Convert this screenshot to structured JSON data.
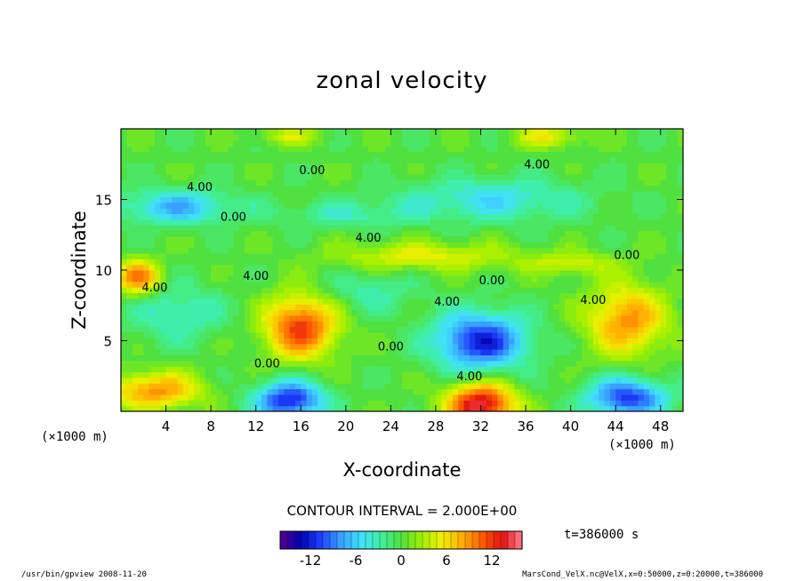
{
  "chart_data": {
    "type": "heatmap",
    "title": "zonal velocity",
    "xlabel": "X-coordinate",
    "ylabel": "Z-coordinate",
    "x_unit": "(×1000 m)",
    "y_unit": "(×1000 m)",
    "xlim": [
      0,
      50
    ],
    "ylim": [
      0,
      20
    ],
    "x_ticks": [
      4,
      8,
      12,
      16,
      20,
      24,
      28,
      32,
      36,
      40,
      44,
      48
    ],
    "y_ticks": [
      5,
      10,
      15
    ],
    "contour_interval_text": "CONTOUR INTERVAL = 2.000E+00",
    "colorbar": {
      "min": -16,
      "max": 16,
      "ticks": [
        -12,
        -6,
        0,
        6,
        12
      ],
      "colors": [
        "#5a008c",
        "#0000b0",
        "#1f40ff",
        "#3aa0ff",
        "#40e0ff",
        "#40f0a0",
        "#50e040",
        "#a0f000",
        "#f0f000",
        "#ffb000",
        "#ff6000",
        "#e01010",
        "#ff8090"
      ]
    },
    "contour_labels": [
      {
        "x": 7,
        "z": 15.6,
        "text": "4.00"
      },
      {
        "x": 10,
        "z": 13.5,
        "text": "0.00"
      },
      {
        "x": 17,
        "z": 16.8,
        "text": "0.00"
      },
      {
        "x": 37,
        "z": 17.2,
        "text": "4.00"
      },
      {
        "x": 22,
        "z": 12.0,
        "text": "4.00"
      },
      {
        "x": 45,
        "z": 10.8,
        "text": "0.00"
      },
      {
        "x": 3,
        "z": 8.5,
        "text": "4.00"
      },
      {
        "x": 12,
        "z": 9.3,
        "text": "4.00"
      },
      {
        "x": 33,
        "z": 9.0,
        "text": "0.00"
      },
      {
        "x": 29,
        "z": 7.5,
        "text": "4.00"
      },
      {
        "x": 42,
        "z": 7.6,
        "text": "4.00"
      },
      {
        "x": 24,
        "z": 4.3,
        "text": "0.00"
      },
      {
        "x": 13,
        "z": 3.1,
        "text": "0.00"
      },
      {
        "x": 31,
        "z": 2.2,
        "text": "4.00"
      }
    ],
    "features": [
      {
        "x": 16,
        "z": 6,
        "u": 12,
        "sx": 3.2,
        "sz": 2.2
      },
      {
        "x": 45,
        "z": 6.5,
        "u": 9,
        "sx": 3.5,
        "sz": 2.5
      },
      {
        "x": 1.5,
        "z": 9.5,
        "u": 10,
        "sx": 2,
        "sz": 1.2
      },
      {
        "x": 32,
        "z": 0.5,
        "u": 15,
        "sx": 3,
        "sz": 1.5
      },
      {
        "x": 3,
        "z": 1.5,
        "u": 9,
        "sx": 4,
        "sz": 1.3
      },
      {
        "x": 27,
        "z": 11,
        "u": 5,
        "sx": 8,
        "sz": 1
      },
      {
        "x": 40,
        "z": 10.5,
        "u": 4,
        "sx": 4,
        "sz": 0.8
      },
      {
        "x": 32,
        "z": 5,
        "u": -12,
        "sx": 4,
        "sz": 2
      },
      {
        "x": 15,
        "z": 0.8,
        "u": -12,
        "sx": 3,
        "sz": 1.4
      },
      {
        "x": 45,
        "z": 1,
        "u": -11,
        "sx": 3.5,
        "sz": 1.4
      },
      {
        "x": 5,
        "z": 14.5,
        "u": -7,
        "sx": 5,
        "sz": 1.2
      },
      {
        "x": 33,
        "z": 15,
        "u": -5,
        "sx": 8,
        "sz": 1.5
      },
      {
        "x": 5,
        "z": 7,
        "u": -4,
        "sx": 4,
        "sz": 2
      },
      {
        "x": 20,
        "z": 14,
        "u": -3,
        "sx": 6,
        "sz": 1
      },
      {
        "x": 38,
        "z": 19.5,
        "u": 5,
        "sx": 3,
        "sz": 0.8
      },
      {
        "x": 15,
        "z": 19.5,
        "u": 4,
        "sx": 3,
        "sz": 0.6
      },
      {
        "x": 22,
        "z": 8.5,
        "u": -3,
        "sx": 4,
        "sz": 1.5
      }
    ]
  },
  "time_label": "t=386000 s",
  "footer_left": "/usr/bin/gpview  2008-11-20",
  "footer_right": "MarsCond_VelX.nc@VelX,x=0:50000,z=0:20000,t=386000"
}
